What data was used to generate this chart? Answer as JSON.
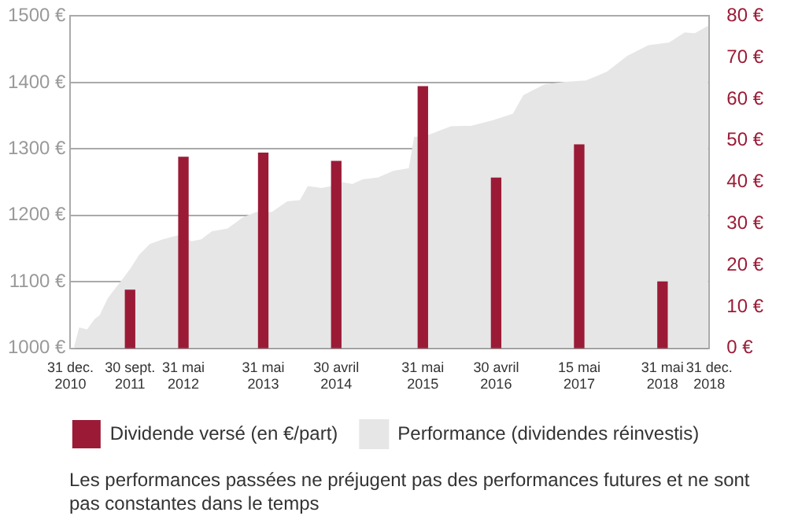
{
  "chart_data": {
    "type": "bar",
    "legend": "bottom",
    "grid": "y",
    "annotations": [
      "Les performances passées ne préjugent pas des performances futures et ne sont pas constantes dans le temps"
    ],
    "xlim": [
      "2010-12-31",
      "2018-12-31"
    ],
    "xticks": [
      {
        "value": "2010-12-31",
        "label": "31 dec.\n2010"
      },
      {
        "value": "2011-09-30",
        "label": "30 sept.\n2011"
      },
      {
        "value": "2012-05-31",
        "label": "31 mai\n2012"
      },
      {
        "value": "2013-05-31",
        "label": "31 mai\n2013"
      },
      {
        "value": "2014-04-30",
        "label": "30 avril\n2014"
      },
      {
        "value": "2015-05-31",
        "label": "31 mai\n2015"
      },
      {
        "value": "2016-04-30",
        "label": "30 avril\n2016"
      },
      {
        "value": "2017-05-15",
        "label": "15 mai\n2017"
      },
      {
        "value": "2018-05-31",
        "label": "31 mai\n2018"
      },
      {
        "value": "2018-12-31",
        "label": "31 dec.\n2018"
      }
    ],
    "ylim": [
      1000,
      1500
    ],
    "yticks": [
      {
        "value": 1000,
        "label": "1000 €"
      },
      {
        "value": 1100,
        "label": "1100 €"
      },
      {
        "value": 1200,
        "label": "1200 €"
      },
      {
        "value": 1300,
        "label": "1300 €"
      },
      {
        "value": 1400,
        "label": "1400 €"
      },
      {
        "value": 1500,
        "label": "1500 €"
      }
    ],
    "y2lim": [
      0,
      80
    ],
    "y2ticks": [
      {
        "value": 0,
        "label": "0 €"
      },
      {
        "value": 10,
        "label": "10 €"
      },
      {
        "value": 20,
        "label": "20 €"
      },
      {
        "value": 30,
        "label": "30 €"
      },
      {
        "value": 40,
        "label": "40 €"
      },
      {
        "value": 50,
        "label": "50 €"
      },
      {
        "value": 60,
        "label": "60 €"
      },
      {
        "value": 70,
        "label": "70 €"
      },
      {
        "value": 80,
        "label": "80 €"
      }
    ],
    "series": [
      {
        "name": "Dividende versé (en €/part)",
        "axis": "y2",
        "color": "#9b1b36",
        "x": [
          "2011-09-30",
          "2012-05-31",
          "2013-05-31",
          "2014-04-30",
          "2015-05-31",
          "2016-04-30",
          "2017-05-15",
          "2018-05-31"
        ],
        "values": [
          14,
          46,
          47,
          45,
          63,
          41,
          49,
          16
        ]
      },
      {
        "name": "Performance (dividendes réinvestis)",
        "type": "area",
        "color": "#e6e6e6",
        "x": [
          "2010-12-31",
          "2011-01-19",
          "2011-02-12",
          "2011-03-19",
          "2011-04-23",
          "2011-05-17",
          "2011-06-22",
          "2011-07-28",
          "2011-09-02",
          "2011-10-08",
          "2011-11-13",
          "2011-12-31",
          "2012-02-28",
          "2012-05-08",
          "2012-07-06",
          "2012-08-23",
          "2012-10-10",
          "2012-12-20",
          "2013-03-01",
          "2013-04-30",
          "2013-07-10",
          "2013-09-19",
          "2013-11-17",
          "2013-12-23",
          "2014-02-21",
          "2014-04-10",
          "2014-05-27",
          "2014-07-13",
          "2014-08-30",
          "2014-11-09",
          "2015-01-19",
          "2015-03-31",
          "2015-04-24",
          "2015-07-04",
          "2015-10-07",
          "2016-01-10",
          "2016-04-14",
          "2016-07-18",
          "2016-09-04",
          "2016-12-08",
          "2017-03-13",
          "2017-06-16",
          "2017-09-19",
          "2017-12-23",
          "2018-03-28",
          "2018-07-01",
          "2018-09-10",
          "2018-10-27",
          "2018-12-26"
        ],
        "values": [
          1000,
          1000,
          1030,
          1027,
          1043,
          1049,
          1074,
          1090,
          1105,
          1121,
          1140,
          1156,
          1163,
          1169,
          1160,
          1163,
          1175,
          1179,
          1196,
          1204,
          1204,
          1220,
          1222,
          1243,
          1240,
          1243,
          1249,
          1246,
          1253,
          1256,
          1266,
          1270,
          1317,
          1321,
          1333,
          1334,
          1342,
          1352,
          1380,
          1396,
          1400,
          1402,
          1415,
          1439,
          1455,
          1459,
          1474,
          1473,
          1484
        ]
      }
    ]
  }
}
